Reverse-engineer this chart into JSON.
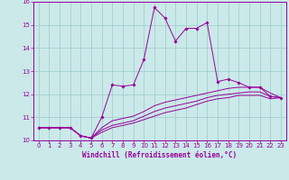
{
  "xlabel": "Windchill (Refroidissement éolien,°C)",
  "background_color": "#cbe9e9",
  "line_color": "#990099",
  "grid_color": "#99cccc",
  "xlim": [
    -0.5,
    23.5
  ],
  "ylim": [
    10,
    16
  ],
  "xticks": [
    0,
    1,
    2,
    3,
    4,
    5,
    6,
    7,
    8,
    9,
    10,
    11,
    12,
    13,
    14,
    15,
    16,
    17,
    18,
    19,
    20,
    21,
    22,
    23
  ],
  "yticks": [
    10,
    11,
    12,
    13,
    14,
    15,
    16
  ],
  "series": {
    "main": [
      10.55,
      10.55,
      10.55,
      10.55,
      10.2,
      10.1,
      11.0,
      12.4,
      12.35,
      12.4,
      13.5,
      15.75,
      15.3,
      14.3,
      14.85,
      14.85,
      15.1,
      12.55,
      12.65,
      12.5,
      12.3,
      12.3,
      11.9,
      11.85
    ],
    "low1": [
      10.55,
      10.55,
      10.55,
      10.55,
      10.2,
      10.1,
      10.55,
      10.85,
      10.95,
      11.05,
      11.25,
      11.5,
      11.65,
      11.75,
      11.85,
      11.95,
      12.05,
      12.15,
      12.25,
      12.3,
      12.3,
      12.3,
      12.05,
      11.85
    ],
    "low2": [
      10.55,
      10.55,
      10.55,
      10.55,
      10.2,
      10.1,
      10.45,
      10.65,
      10.75,
      10.85,
      11.05,
      11.25,
      11.4,
      11.5,
      11.6,
      11.7,
      11.85,
      11.95,
      12.0,
      12.05,
      12.1,
      12.1,
      11.9,
      11.85
    ],
    "low3": [
      10.55,
      10.55,
      10.55,
      10.55,
      10.2,
      10.1,
      10.35,
      10.55,
      10.65,
      10.75,
      10.9,
      11.05,
      11.2,
      11.3,
      11.4,
      11.55,
      11.7,
      11.8,
      11.85,
      11.95,
      11.95,
      11.95,
      11.8,
      11.85
    ]
  }
}
